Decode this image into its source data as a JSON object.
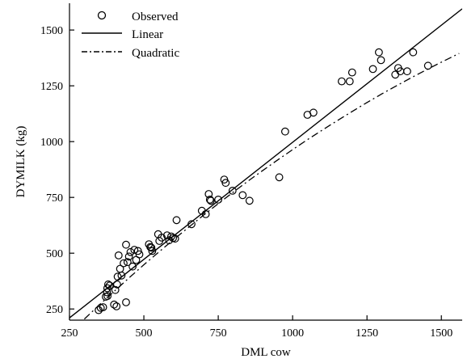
{
  "chart_data": {
    "type": "scatter",
    "title": "",
    "xlabel": "DML cow",
    "ylabel": "DYMILK (kg)",
    "xlim": [
      250,
      1570
    ],
    "ylim": [
      200,
      1620
    ],
    "xticks": [
      250,
      500,
      750,
      1000,
      1250,
      1500
    ],
    "yticks": [
      250,
      500,
      750,
      1000,
      1250,
      1500
    ],
    "legend_position": "top-left",
    "legend": [
      "Observed",
      "Linear",
      "Quadratic"
    ],
    "colors": {
      "ink": "#000000",
      "background": "#ffffff"
    },
    "series": [
      {
        "name": "Observed",
        "kind": "points",
        "points": [
          [
            348,
            245
          ],
          [
            355,
            255
          ],
          [
            363,
            258
          ],
          [
            372,
            305
          ],
          [
            376,
            325
          ],
          [
            377,
            343
          ],
          [
            380,
            360
          ],
          [
            385,
            355
          ],
          [
            378,
            308
          ],
          [
            400,
            270
          ],
          [
            408,
            262
          ],
          [
            404,
            335
          ],
          [
            410,
            360
          ],
          [
            412,
            395
          ],
          [
            415,
            490
          ],
          [
            420,
            430
          ],
          [
            425,
            400
          ],
          [
            432,
            455
          ],
          [
            440,
            280
          ],
          [
            440,
            538
          ],
          [
            445,
            460
          ],
          [
            450,
            485
          ],
          [
            455,
            505
          ],
          [
            462,
            440
          ],
          [
            468,
            515
          ],
          [
            474,
            470
          ],
          [
            480,
            510
          ],
          [
            485,
            495
          ],
          [
            517,
            540
          ],
          [
            522,
            528
          ],
          [
            525,
            525
          ],
          [
            528,
            510
          ],
          [
            548,
            585
          ],
          [
            552,
            555
          ],
          [
            560,
            570
          ],
          [
            578,
            580
          ],
          [
            585,
            558
          ],
          [
            592,
            575
          ],
          [
            598,
            568
          ],
          [
            605,
            565
          ],
          [
            610,
            648
          ],
          [
            660,
            630
          ],
          [
            695,
            690
          ],
          [
            708,
            675
          ],
          [
            718,
            765
          ],
          [
            722,
            740
          ],
          [
            725,
            735
          ],
          [
            750,
            740
          ],
          [
            770,
            830
          ],
          [
            775,
            815
          ],
          [
            798,
            780
          ],
          [
            832,
            760
          ],
          [
            855,
            735
          ],
          [
            955,
            840
          ],
          [
            975,
            1045
          ],
          [
            1050,
            1120
          ],
          [
            1070,
            1130
          ],
          [
            1165,
            1270
          ],
          [
            1192,
            1270
          ],
          [
            1200,
            1310
          ],
          [
            1270,
            1325
          ],
          [
            1290,
            1400
          ],
          [
            1297,
            1365
          ],
          [
            1345,
            1300
          ],
          [
            1355,
            1330
          ],
          [
            1362,
            1315
          ],
          [
            1385,
            1315
          ],
          [
            1405,
            1400
          ],
          [
            1455,
            1340
          ]
        ]
      },
      {
        "name": "Linear",
        "kind": "line",
        "style": "solid",
        "points": [
          [
            250,
            210
          ],
          [
            1570,
            1595
          ]
        ]
      },
      {
        "name": "Quadratic",
        "kind": "line",
        "style": "dash-dot",
        "points": [
          [
            300,
            205
          ],
          [
            350,
            268
          ],
          [
            400,
            329
          ],
          [
            450,
            389
          ],
          [
            500,
            448
          ],
          [
            550,
            505
          ],
          [
            600,
            561
          ],
          [
            650,
            616
          ],
          [
            700,
            670
          ],
          [
            750,
            722
          ],
          [
            800,
            773
          ],
          [
            850,
            823
          ],
          [
            900,
            871
          ],
          [
            950,
            918
          ],
          [
            1000,
            964
          ],
          [
            1050,
            1009
          ],
          [
            1100,
            1052
          ],
          [
            1150,
            1094
          ],
          [
            1200,
            1135
          ],
          [
            1250,
            1175
          ],
          [
            1300,
            1214
          ],
          [
            1350,
            1251
          ],
          [
            1400,
            1287
          ],
          [
            1450,
            1322
          ],
          [
            1500,
            1356
          ],
          [
            1560,
            1395
          ]
        ]
      }
    ]
  }
}
